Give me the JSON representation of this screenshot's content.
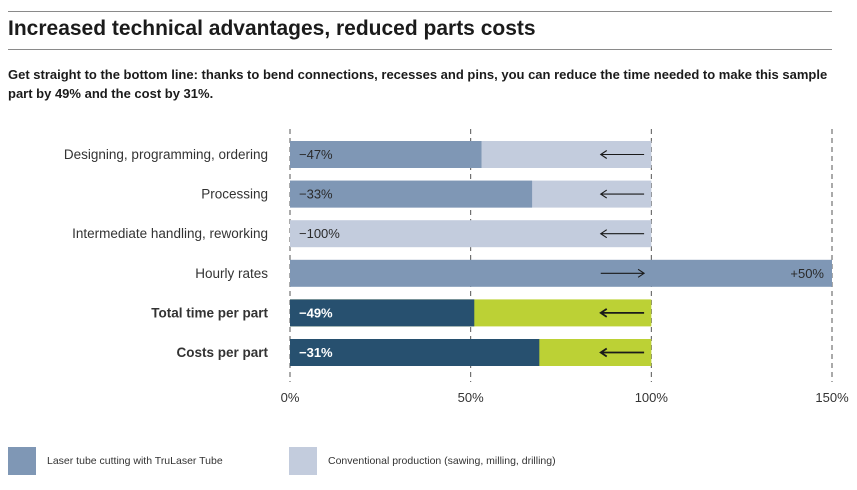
{
  "title": "Increased technical advantages, reduced parts costs",
  "subtitle": "Get straight to the bottom line: thanks to bend connections, recesses and pins, you can reduce the time needed to make this sample part by 49% and the cost by 31%.",
  "colors": {
    "laser": "#7f97b5",
    "conventional": "#c3ccdd",
    "total_dark": "#27506f",
    "total_green": "#bcd135",
    "grid": "#555555",
    "text": "#333333"
  },
  "legend": [
    {
      "label": "Laser tube cutting with TruLaser Tube",
      "color": "#7f97b5"
    },
    {
      "label": "Conventional production (sawing, milling, drilling)",
      "color": "#c3ccdd"
    }
  ],
  "chart_data": {
    "type": "bar",
    "orientation": "horizontal",
    "xlim": [
      0,
      150
    ],
    "x_ticks": [
      {
        "value": 0,
        "label": "0%"
      },
      {
        "value": 50,
        "label": "50%"
      },
      {
        "value": 100,
        "label": "100%"
      },
      {
        "value": 150,
        "label": "150%"
      }
    ],
    "grid": true,
    "categories": [
      "Designing, programming, ordering",
      "Processing",
      "Intermediate handling, reworking",
      "Hourly rates",
      "Total time per part",
      "Costs per part"
    ],
    "bold_categories": [
      "Total time per part",
      "Costs per part"
    ],
    "rows": [
      {
        "category": "Designing, programming, ordering",
        "laser": 53,
        "conventional": 100,
        "change_label": "−47%",
        "arrow": "left",
        "style": "normal"
      },
      {
        "category": "Processing",
        "laser": 67,
        "conventional": 100,
        "change_label": "−33%",
        "arrow": "left",
        "style": "normal"
      },
      {
        "category": "Intermediate handling, reworking",
        "laser": 0,
        "conventional": 100,
        "change_label": "−100%",
        "arrow": "left",
        "style": "normal"
      },
      {
        "category": "Hourly rates",
        "laser": 150,
        "conventional": 100,
        "change_label": "+50%",
        "arrow": "right",
        "style": "normal"
      },
      {
        "category": "Total time per part",
        "laser": 51,
        "conventional": 100,
        "change_label": "−49%",
        "arrow": "left",
        "style": "total"
      },
      {
        "category": "Costs per part",
        "laser": 69,
        "conventional": 100,
        "change_label": "−31%",
        "arrow": "left",
        "style": "total"
      }
    ]
  }
}
